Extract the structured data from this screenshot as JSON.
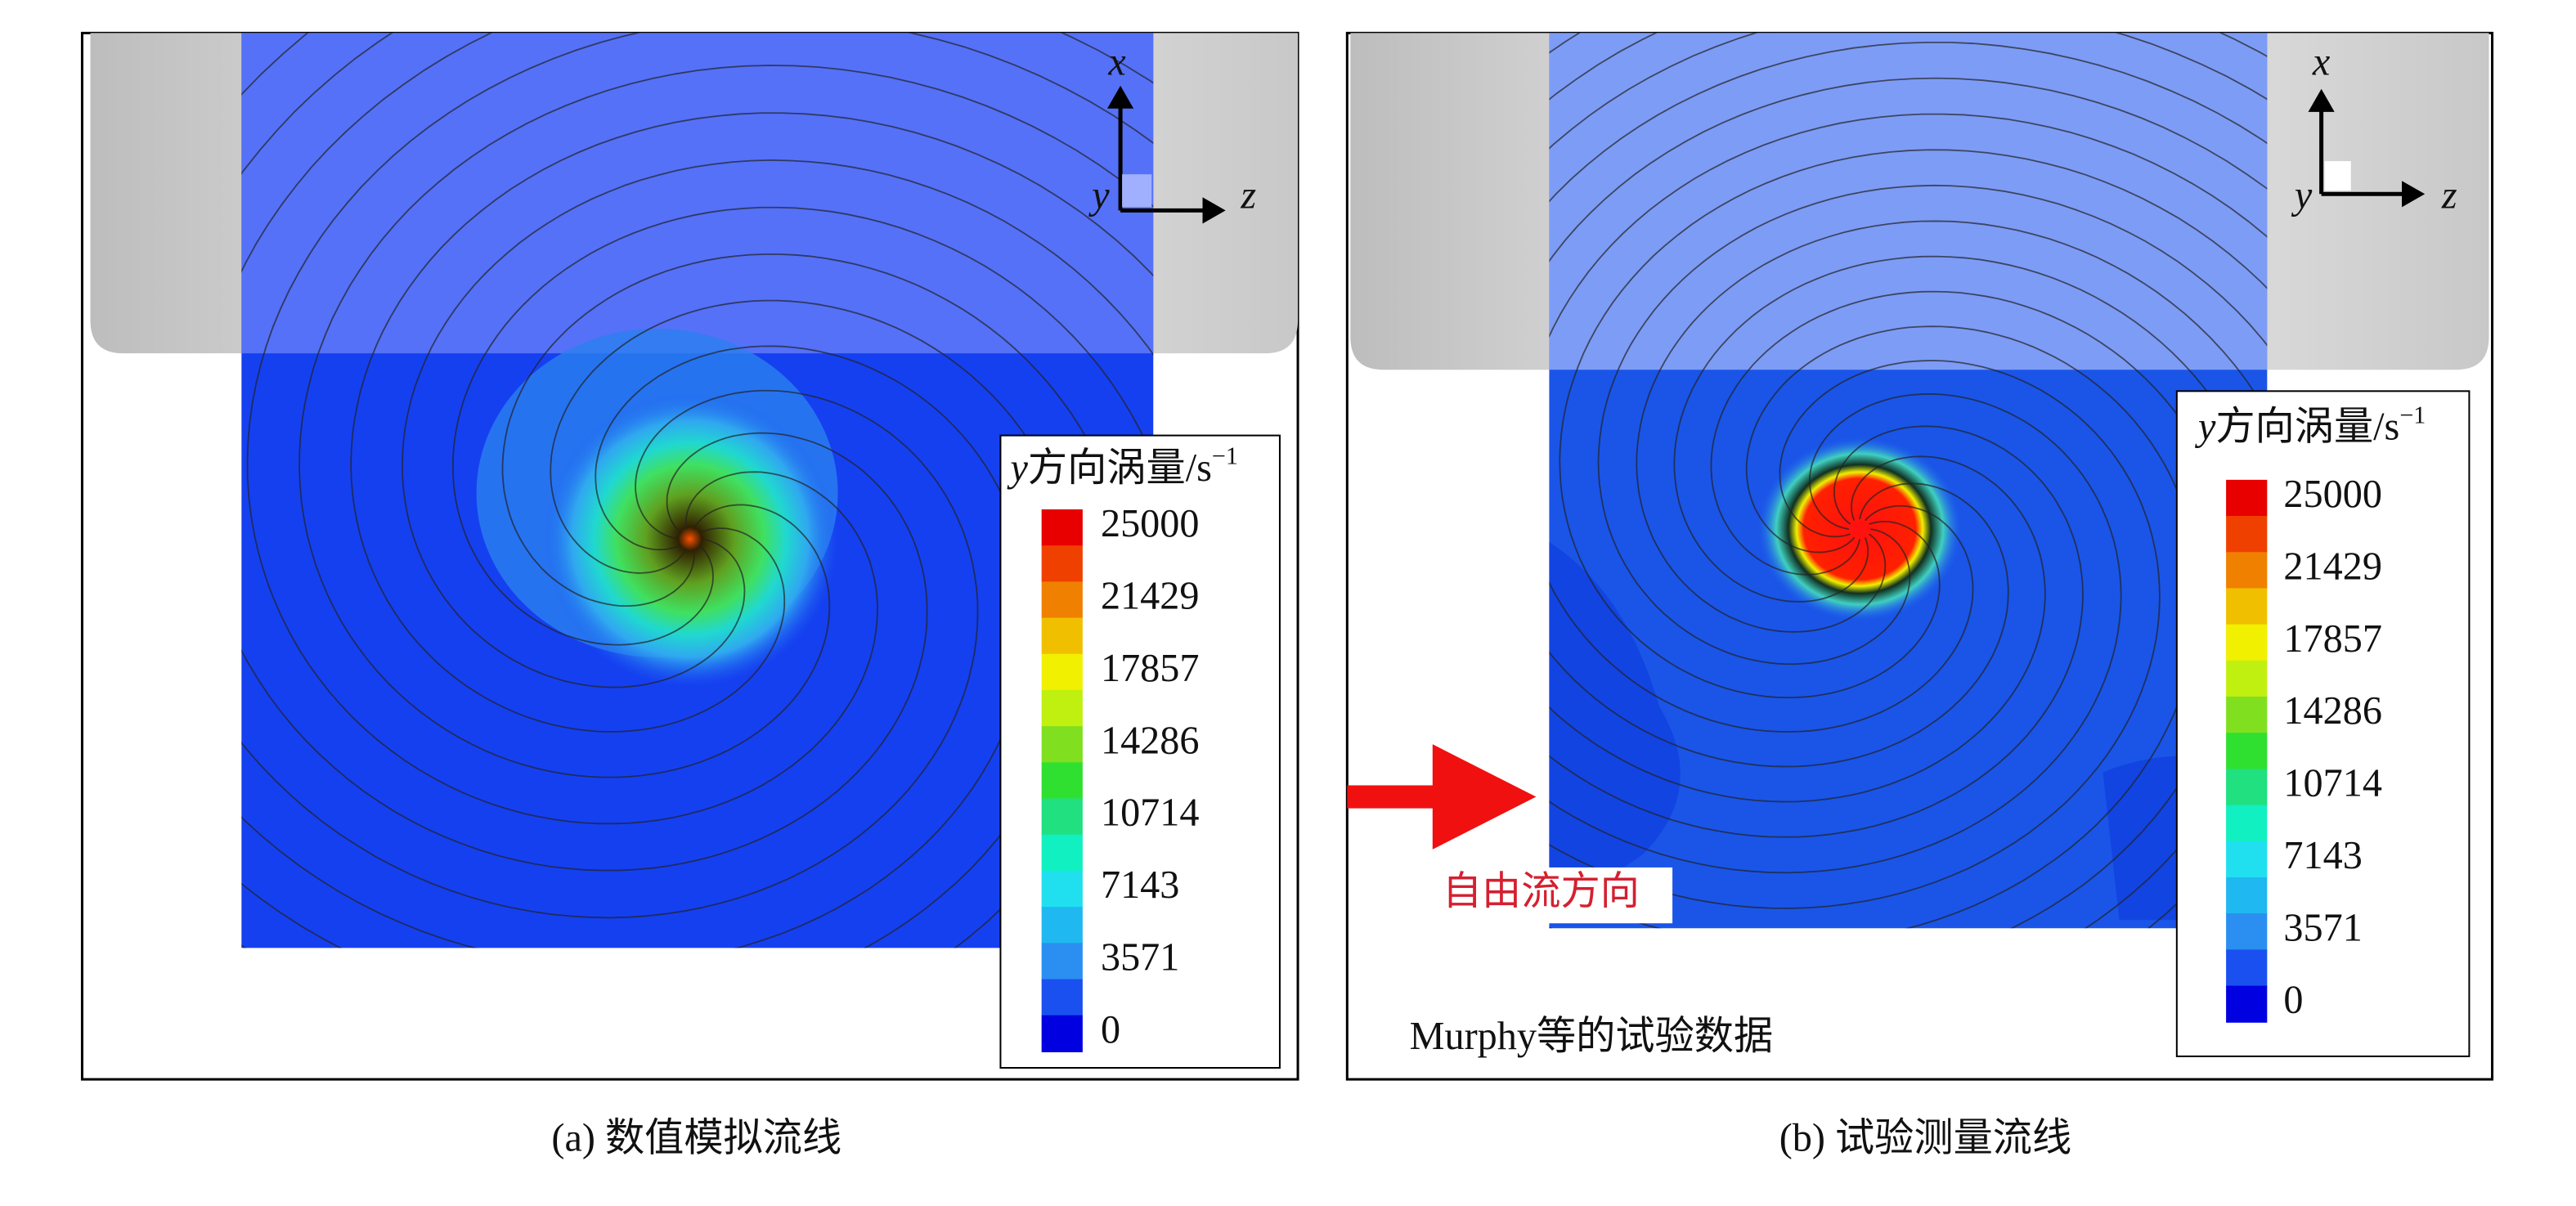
{
  "panels": [
    {
      "caption": "(a) 数值模拟流线",
      "axes": {
        "x": "x",
        "y": "y",
        "z": "z"
      },
      "colorbar": {
        "title": {
          "variable": "y",
          "text": "方向涡量/s",
          "exponent": "−1"
        },
        "ticks": [
          25000,
          21429,
          17857,
          14286,
          10714,
          7143,
          3571,
          0
        ]
      }
    },
    {
      "caption": "(b) 试验测量流线",
      "axes": {
        "x": "x",
        "y": "y",
        "z": "z"
      },
      "colorbar": {
        "title": {
          "variable": "y",
          "text": "方向涡量/s",
          "exponent": "−1"
        },
        "ticks": [
          25000,
          21429,
          17857,
          14286,
          10714,
          7143,
          3571,
          0
        ]
      },
      "annotations": {
        "flow_direction": "自由流方向",
        "source": "Murphy等的试验数据"
      }
    }
  ]
}
